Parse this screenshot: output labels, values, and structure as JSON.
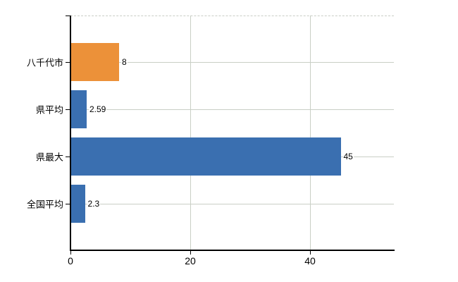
{
  "chart_data": {
    "type": "bar",
    "orientation": "horizontal",
    "title": "",
    "xlabel": "",
    "ylabel": "",
    "categories": [
      "八千代市",
      "県平均",
      "県最大",
      "全国平均"
    ],
    "values": [
      8,
      2.59,
      45,
      2.3
    ],
    "value_labels": [
      "8",
      "2.59",
      "45",
      "2.3"
    ],
    "x_ticks": [
      0,
      20,
      40
    ],
    "x_tick_labels": [
      "0",
      "20",
      "40"
    ],
    "xlim": [
      0,
      54
    ],
    "grid": true,
    "legend": false,
    "colors": {
      "highlight_bar": "#EC9139",
      "default_bar": "#3A6FB0",
      "bar_colors": [
        "#EC9139",
        "#3A6FB0",
        "#3A6FB0",
        "#3A6FB0"
      ],
      "gridline": "#C9CFC5",
      "axis": "#000000",
      "text": "#000000",
      "background": "#FFFFFF"
    }
  }
}
